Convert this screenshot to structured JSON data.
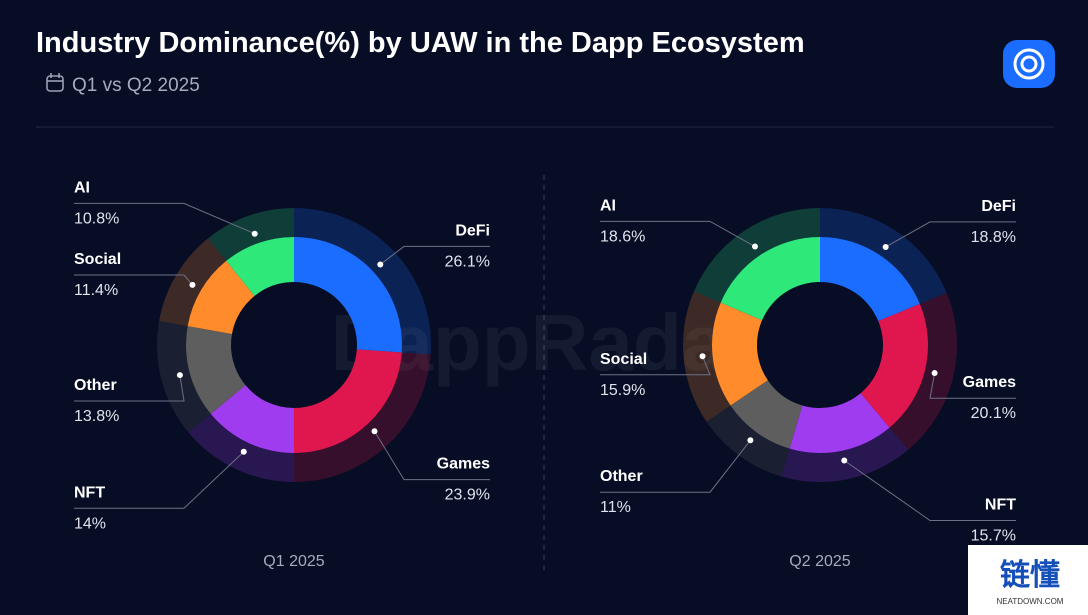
{
  "header": {
    "title": "Industry Dominance(%) by UAW in the Dapp Ecosystem",
    "subtitle": "Q1 vs Q2 2025"
  },
  "watermark": "DappRadar",
  "corner_badge": {
    "text": "链懂",
    "url": "NEATDOWN.COM"
  },
  "chart_data": [
    {
      "type": "pie",
      "donut": true,
      "title": "Q1 2025",
      "categories": [
        "DeFi",
        "Games",
        "NFT",
        "Other",
        "Social",
        "AI"
      ],
      "values": [
        26.1,
        23.9,
        14,
        13.8,
        11.4,
        10.8
      ],
      "value_labels": [
        "26.1%",
        "23.9%",
        "14%",
        "13.8%",
        "11.4%",
        "10.8%"
      ],
      "colors": [
        "#1a6dff",
        "#e0174f",
        "#a03cf0",
        "#5e5e5e",
        "#ff8b2b",
        "#2ee87a"
      ]
    },
    {
      "type": "pie",
      "donut": true,
      "title": "Q2 2025",
      "categories": [
        "DeFi",
        "Games",
        "NFT",
        "Other",
        "Social",
        "AI"
      ],
      "values": [
        18.8,
        20.1,
        15.7,
        11,
        15.9,
        18.6
      ],
      "value_labels": [
        "18.8%",
        "20.1%",
        "15.7%",
        "11%",
        "15.9%",
        "18.6%"
      ],
      "colors": [
        "#1a6dff",
        "#e0174f",
        "#a03cf0",
        "#5e5e5e",
        "#ff8b2b",
        "#2ee87a"
      ]
    }
  ]
}
